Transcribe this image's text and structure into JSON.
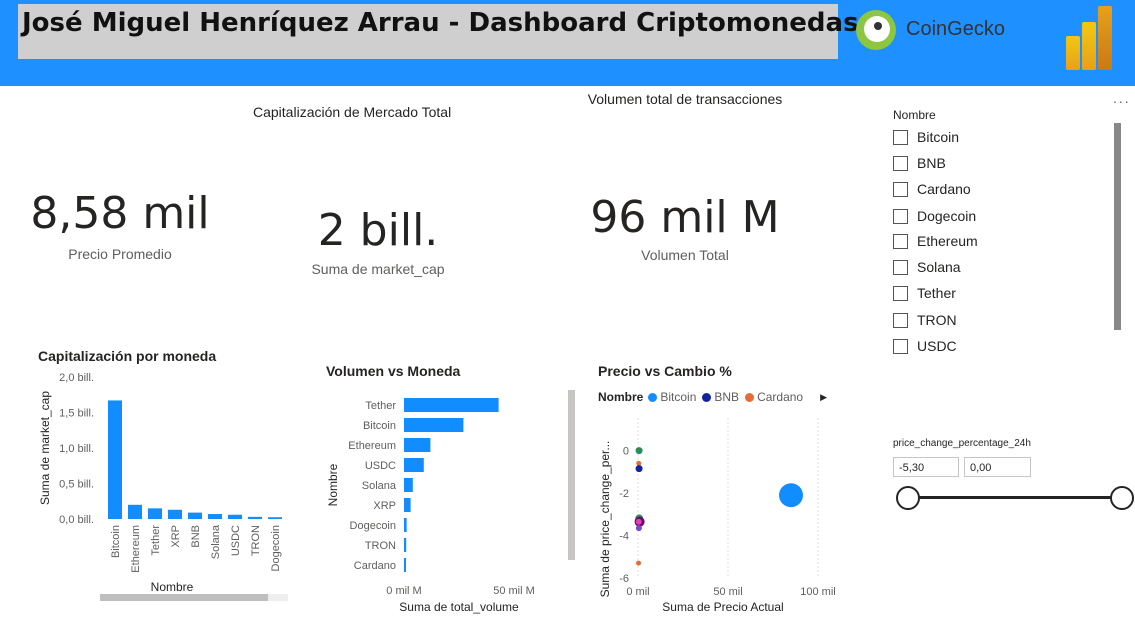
{
  "header": {
    "title": "José Miguel Henríquez Arrau - Dashboard Criptomonedas",
    "partner_logo_text": "CoinGecko",
    "partner_logo_icon": "gecko-logo-icon",
    "app_logo_icon": "power-bi-logo-icon"
  },
  "colors": {
    "header_bg": "#1e90ff",
    "bar": "#118dff",
    "bitcoin": "#118dff",
    "bnb": "#12239e",
    "cardano": "#e66c37"
  },
  "cards": {
    "avg_price": {
      "value": "8,58 mil",
      "label": "Precio Promedio"
    },
    "market_cap": {
      "title": "Capitalización de Mercado Total",
      "value": "2 bill.",
      "label": "Suma de market_cap"
    },
    "volume": {
      "title": "Volumen total de transacciones",
      "value": "96 mil M",
      "label": "Volumen Total"
    }
  },
  "slicer_nombre": {
    "title": "Nombre",
    "items": [
      "Bitcoin",
      "BNB",
      "Cardano",
      "Dogecoin",
      "Ethereum",
      "Solana",
      "Tether",
      "TRON",
      "USDC"
    ]
  },
  "slicer_price_change": {
    "title": "price_change_percentage_24h",
    "min": "-5,30",
    "max": "0,00"
  },
  "more_options": "...",
  "chart_data": [
    {
      "type": "bar",
      "title": "Capitalización por moneda",
      "xlabel": "Nombre",
      "ylabel": "Suma de market_cap",
      "categories": [
        "Bitcoin",
        "Ethereum",
        "Tether",
        "XRP",
        "BNB",
        "Solana",
        "USDC",
        "TRON",
        "Dogecoin"
      ],
      "values": [
        1.67,
        0.2,
        0.15,
        0.13,
        0.09,
        0.07,
        0.06,
        0.03,
        0.025
      ],
      "yticks": [
        "0,0 bill.",
        "0,5 bill.",
        "1,0 bill.",
        "1,5 bill.",
        "2,0 bill."
      ],
      "ylim": [
        0,
        2.0
      ]
    },
    {
      "type": "bar",
      "orientation": "horizontal",
      "title": "Volumen vs Moneda",
      "xlabel": "Suma de total_volume",
      "ylabel": "Nombre",
      "categories": [
        "Tether",
        "Bitcoin",
        "Ethereum",
        "USDC",
        "Solana",
        "XRP",
        "Dogecoin",
        "TRON",
        "Cardano"
      ],
      "values": [
        43,
        27,
        12,
        9,
        4,
        3,
        1.2,
        1.0,
        0.7
      ],
      "xticks": [
        "0 mil M",
        "50 mil M"
      ],
      "xlim": [
        0,
        50
      ]
    },
    {
      "type": "scatter",
      "title": "Precio vs Cambio %",
      "legend_title": "Nombre",
      "legend": [
        "Bitcoin",
        "BNB",
        "Cardano"
      ],
      "xlabel": "Suma de Precio Actual",
      "ylabel": "Suma de price_change_per...",
      "xticks": [
        "0 mil",
        "50 mil",
        "100 mil"
      ],
      "yticks": [
        "0",
        "-2",
        "-4",
        "-6"
      ],
      "xlim": [
        0,
        100
      ],
      "ylim": [
        -6,
        0.5
      ],
      "points": [
        {
          "x": 85,
          "y": -2.1,
          "color": "#118dff",
          "size": 12
        },
        {
          "x": 0.6,
          "y": 0.0,
          "color": "#2e8b57",
          "size": 3.5
        },
        {
          "x": 0.4,
          "y": -0.6,
          "color": "#e66c37",
          "size": 2.5
        },
        {
          "x": 0.6,
          "y": -0.85,
          "color": "#12239e",
          "size": 3.5
        },
        {
          "x": 0.7,
          "y": -3.2,
          "color": "#2e8b57",
          "size": 4
        },
        {
          "x": 0.9,
          "y": -3.35,
          "color": "#6b007b",
          "size": 5
        },
        {
          "x": 0.4,
          "y": -3.35,
          "color": "#e044a7",
          "size": 3
        },
        {
          "x": 0.5,
          "y": -3.65,
          "color": "#744ec2",
          "size": 3
        },
        {
          "x": 0.3,
          "y": -5.3,
          "color": "#e66c37",
          "size": 2.5
        }
      ]
    }
  ]
}
